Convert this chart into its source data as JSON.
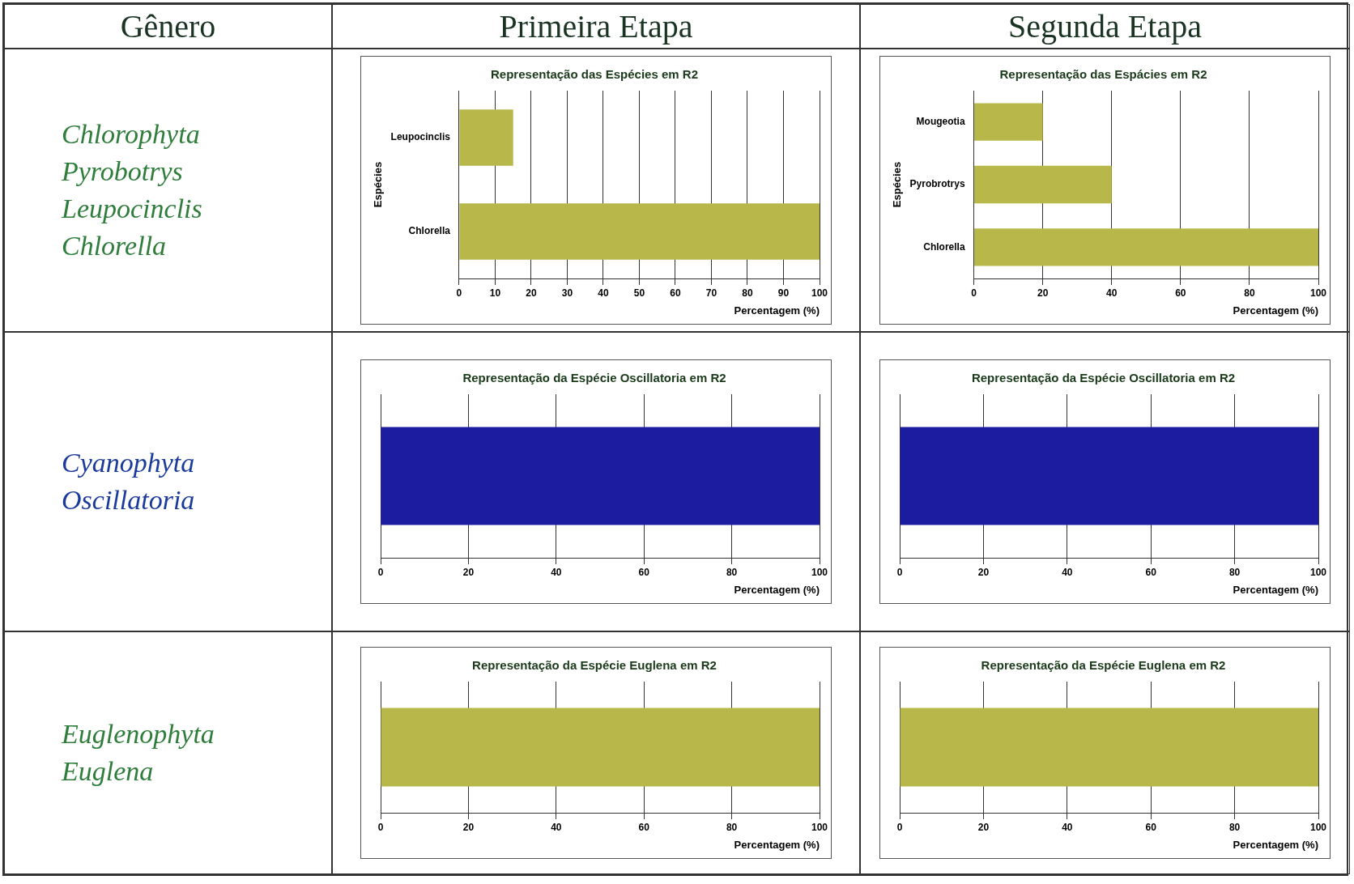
{
  "chart_data": [
    {
      "type": "other",
      "title": "Gênero"
    },
    {
      "type": "other",
      "title": "Primeira Etapa"
    },
    {
      "type": "other",
      "title": "Segunda Etapa"
    },
    {
      "type": "other",
      "annotations": [
        "Chlorophyta",
        "Pyrobotrys",
        "Leupocinclis",
        "Chlorella"
      ],
      "color": "#2e7d3a"
    },
    {
      "type": "bar",
      "orientation": "horizontal",
      "title": "Representação das Espécies em R2",
      "xlabel": "Percentagem (%)",
      "ylabel": "Espécies",
      "categories": [
        "Leupocinclis",
        "Chlorella"
      ],
      "values": [
        15,
        100
      ],
      "color": "#b8b84a",
      "xlim": [
        0,
        100
      ],
      "xticks": [
        0,
        10,
        20,
        30,
        40,
        50,
        60,
        70,
        80,
        90,
        100
      ],
      "grid": "x",
      "legend": false
    },
    {
      "type": "bar",
      "orientation": "horizontal",
      "title": "Representação das Espácies em R2",
      "xlabel": "Percentagem (%)",
      "ylabel": "Espécies",
      "categories": [
        "Mougeotia",
        "Pyrobrotrys",
        "Chlorella"
      ],
      "values": [
        20,
        40,
        100
      ],
      "color": "#b8b84a",
      "xlim": [
        0,
        100
      ],
      "xticks": [
        0,
        20,
        40,
        60,
        80,
        100
      ],
      "grid": "x",
      "legend": false
    },
    {
      "type": "other",
      "annotations": [
        "Cyanophyta",
        "Oscillatoria"
      ],
      "color": "#1a3a9c"
    },
    {
      "type": "bar",
      "orientation": "horizontal",
      "title": "Representação da Espécie Oscillatoria em R2",
      "xlabel": "Percentagem (%)",
      "categories": [
        null
      ],
      "values": [
        100
      ],
      "color": "#1c1ca0",
      "xlim": [
        0,
        100
      ],
      "xticks": [
        0,
        20,
        40,
        60,
        80,
        100
      ],
      "grid": "x",
      "legend": false
    },
    {
      "type": "bar",
      "orientation": "horizontal",
      "title": "Representação da Espécie Oscillatoria em R2",
      "xlabel": "Percentagem (%)",
      "categories": [
        null
      ],
      "values": [
        100
      ],
      "color": "#1c1ca0",
      "xlim": [
        0,
        100
      ],
      "xticks": [
        0,
        20,
        40,
        60,
        80,
        100
      ],
      "grid": "x",
      "legend": false
    },
    {
      "type": "other",
      "annotations": [
        "Euglenophyta",
        "Euglena"
      ],
      "color": "#2e7d3a"
    },
    {
      "type": "bar",
      "orientation": "horizontal",
      "title": "Representação da Espécie Euglena em R2",
      "xlabel": "Percentagem (%)",
      "categories": [
        null
      ],
      "values": [
        100
      ],
      "color": "#b8b84a",
      "xlim": [
        0,
        100
      ],
      "xticks": [
        0,
        20,
        40,
        60,
        80,
        100
      ],
      "grid": "x",
      "legend": false
    },
    {
      "type": "bar",
      "orientation": "horizontal",
      "title": "Representação da Espécie Euglena em R2",
      "xlabel": "Percentagem (%)",
      "categories": [
        null
      ],
      "values": [
        100
      ],
      "color": "#b8b84a",
      "xlim": [
        0,
        100
      ],
      "xticks": [
        0,
        20,
        40,
        60,
        80,
        100
      ],
      "grid": "x",
      "legend": false
    }
  ]
}
